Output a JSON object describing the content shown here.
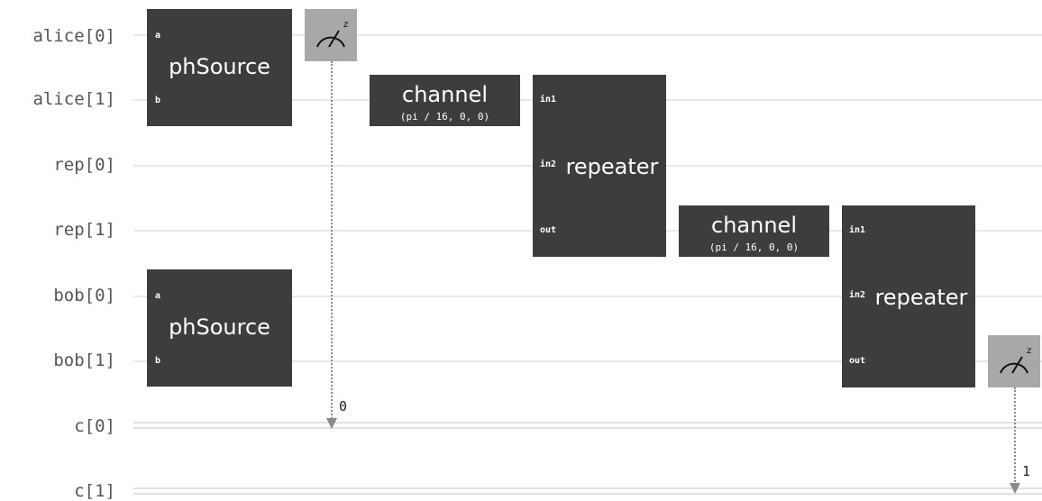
{
  "wires": [
    {
      "label": "alice[0]"
    },
    {
      "label": "alice[1]"
    },
    {
      "label": "rep[0]"
    },
    {
      "label": "rep[1]"
    },
    {
      "label": "bob[0]"
    },
    {
      "label": "bob[1]"
    },
    {
      "label": "c[0]"
    },
    {
      "label": "c[1]"
    }
  ],
  "gates": {
    "phsource_alice": {
      "name": "phSource",
      "port_a": "a",
      "port_b": "b"
    },
    "phsource_bob": {
      "name": "phSource",
      "port_a": "a",
      "port_b": "b"
    },
    "channel_1": {
      "name": "channel",
      "param": "(pi / 16, 0, 0)"
    },
    "channel_2": {
      "name": "channel",
      "param": "(pi / 16, 0, 0)"
    },
    "repeater_1": {
      "name": "repeater",
      "port_in1": "in1",
      "port_in2": "in2",
      "port_out": "out"
    },
    "repeater_2": {
      "name": "repeater",
      "port_in1": "in1",
      "port_in2": "in2",
      "port_out": "out"
    }
  },
  "measurements": [
    {
      "basis": "z",
      "bit": "0"
    },
    {
      "basis": "z",
      "bit": "1"
    }
  ],
  "colors": {
    "gate": "#3d3d3d",
    "measure": "#a8a8a8",
    "wire": "#e8e8e8"
  }
}
